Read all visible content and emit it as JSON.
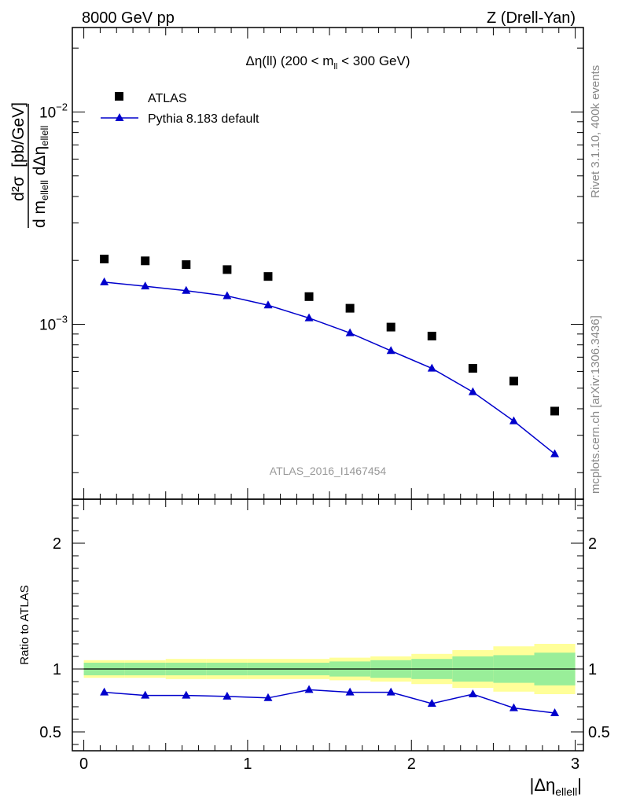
{
  "header": {
    "left_label": "8000 GeV pp",
    "right_label": "Z (Drell-Yan)"
  },
  "side_labels": {
    "rivet": "Rivet 3.1.10,  400k events",
    "mcplots": "mcplots.cern.ch [arXiv:1306.3436]"
  },
  "colors": {
    "data": "#000000",
    "mc": "#0000cc",
    "band_inner": "#99ee99",
    "band_outer": "#ffff99",
    "watermark": "#999999",
    "side_text": "#888888"
  },
  "chart_data": [
    {
      "name": "main",
      "type": "scatter",
      "title": "Δη(ll) (200 < m_ll < 300 GeV)",
      "title_parts": {
        "main": "Δη(ll) (200 < m",
        "sub": "ll",
        "tail": " < 300 GeV)"
      },
      "ylabel": "d²σ / d m_ellell dΔη_ellell [pb/GeV]",
      "ylabel_parts": {
        "num": "d²σ",
        "den_a": "d m",
        "den_sub1": "ellell",
        "den_b": " dΔη",
        "den_sub2": "ellell",
        "unit": "[pb/GeV]"
      },
      "yscale": "log",
      "ylim": [
        0.00015,
        0.025
      ],
      "xlim": [
        -0.07,
        3.05
      ],
      "yticks": [
        {
          "value": 0.001,
          "base": "10",
          "exp": "−3"
        },
        {
          "value": 0.01,
          "base": "10",
          "exp": "−2"
        }
      ],
      "watermark": "ATLAS_2016_I1467454",
      "legend_position": "top-left",
      "x": [
        0.125,
        0.375,
        0.625,
        0.875,
        1.125,
        1.375,
        1.625,
        1.875,
        2.125,
        2.375,
        2.625,
        2.875
      ],
      "series": [
        {
          "name": "ATLAS",
          "marker": "square",
          "values": [
            0.00203,
            0.00199,
            0.00191,
            0.00181,
            0.00168,
            0.00135,
            0.00119,
            0.00097,
            0.00088,
            0.00062,
            0.00054,
            0.00039
          ]
        },
        {
          "name": "Pythia 8.183 default",
          "marker": "triangle",
          "line": true,
          "values": [
            0.00158,
            0.00151,
            0.00144,
            0.00136,
            0.00123,
            0.00107,
            0.00091,
            0.00075,
            0.00062,
            0.00048,
            0.00035,
            0.000245
          ]
        }
      ]
    },
    {
      "name": "ratio",
      "type": "line",
      "ylabel": "Ratio to ATLAS",
      "ylim": [
        0.35,
        2.35
      ],
      "yticks": [
        0.5,
        1,
        2
      ],
      "xlim": [
        -0.07,
        3.05
      ],
      "xticks": [
        0,
        1,
        2,
        3
      ],
      "xlabel": "|Δη_ellell|",
      "xlabel_parts": {
        "main": "|Δη",
        "sub": "ellell",
        "tail": "|"
      },
      "x_edges": [
        0,
        0.25,
        0.5,
        0.75,
        1.0,
        1.25,
        1.5,
        1.75,
        2.0,
        2.25,
        2.5,
        2.75,
        3.0
      ],
      "band_inner": [
        0.05,
        0.05,
        0.05,
        0.05,
        0.05,
        0.05,
        0.06,
        0.07,
        0.08,
        0.1,
        0.11,
        0.13
      ],
      "band_outer": [
        0.07,
        0.07,
        0.08,
        0.08,
        0.08,
        0.08,
        0.09,
        0.1,
        0.12,
        0.15,
        0.18,
        0.2
      ],
      "x": [
        0.125,
        0.375,
        0.625,
        0.875,
        1.125,
        1.375,
        1.625,
        1.875,
        2.125,
        2.375,
        2.625,
        2.875
      ],
      "series": [
        {
          "name": "Pythia 8.183 default",
          "values": [
            0.815,
            0.79,
            0.79,
            0.782,
            0.77,
            0.835,
            0.815,
            0.815,
            0.725,
            0.8,
            0.69,
            0.65
          ]
        }
      ]
    }
  ]
}
